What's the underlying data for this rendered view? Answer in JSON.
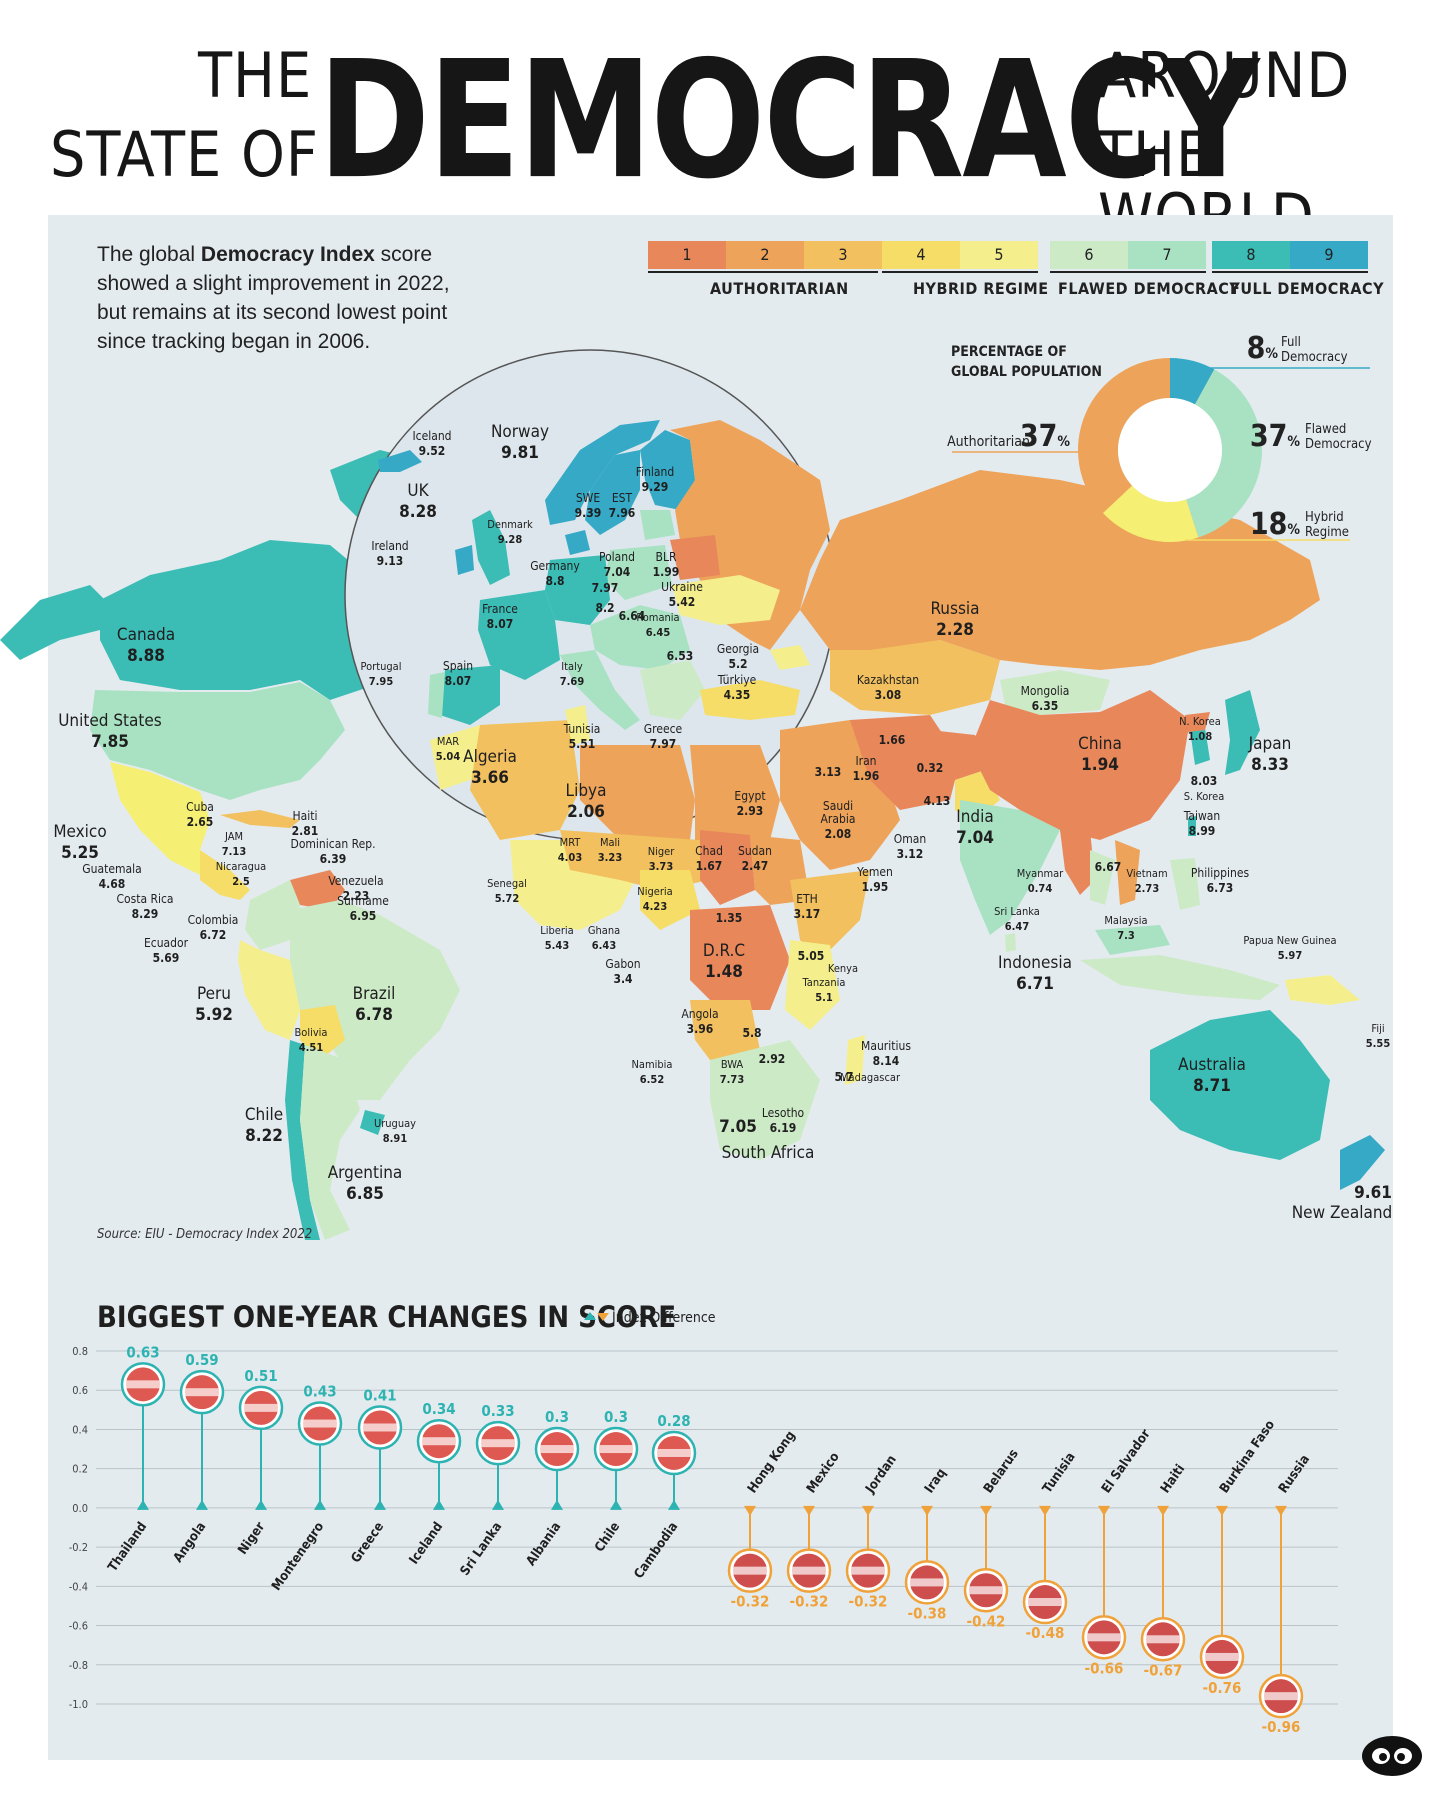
{
  "header": {
    "line1_left": "THE",
    "line2_left": "STATE OF",
    "big": "DEMOCRACY",
    "line1_right": "AROUND",
    "line2_right": "THE WORLD"
  },
  "intro": {
    "pre": "The global ",
    "bold": "Democracy Index",
    "post": " score showed a slight improvement in 2022, but remains at its second lowest point since tracking began in 2006."
  },
  "legend": {
    "cells": [
      {
        "label": "1",
        "color": "#e8875a"
      },
      {
        "label": "2",
        "color": "#eda359"
      },
      {
        "label": "3",
        "color": "#f2c05e"
      },
      {
        "label": "4",
        "color": "#f5dd67"
      },
      {
        "label": "5",
        "color": "#f4ef8c"
      },
      {
        "label": "6",
        "color": "#cdeac7"
      },
      {
        "label": "7",
        "color": "#a8e2c3"
      },
      {
        "label": "8",
        "color": "#3bbcb5"
      },
      {
        "label": "9",
        "color": "#36a9c6"
      }
    ],
    "groups": [
      "AUTHORITARIAN",
      "HYBRID REGIME",
      "FLAWED DEMOCRACY",
      "FULL DEMOCRACY"
    ]
  },
  "population": {
    "title_line1": "PERCENTAGE OF",
    "title_line2": "GLOBAL POPULATION",
    "segments": [
      {
        "name_line1": "Full",
        "name_line2": "Democracy",
        "value": 8,
        "color": "#36a9c6"
      },
      {
        "name_line1": "Flawed",
        "name_line2": "Democracy",
        "value": 37,
        "color": "#a8e2c3"
      },
      {
        "name_line1": "Hybrid",
        "name_line2": "Regime",
        "value": 18,
        "color": "#f5ef73"
      },
      {
        "name_line1": "Authoritarian",
        "name_line2": "",
        "value": 37,
        "color": "#eda359"
      }
    ],
    "pct_symbol": "%"
  },
  "map_labels": {
    "iceland": [
      "Iceland",
      "9.52"
    ],
    "norway": [
      "Norway",
      "9.81"
    ],
    "finland": [
      "Finland",
      "9.29"
    ],
    "uk": [
      "UK",
      "8.28"
    ],
    "swe": [
      "SWE",
      "9.39"
    ],
    "est": [
      "EST",
      "7.96"
    ],
    "denmark": [
      "Denmark",
      "9.28"
    ],
    "ireland": [
      "Ireland",
      "9.13"
    ],
    "germany": [
      "Germany",
      "8.8"
    ],
    "poland": [
      "Poland",
      "7.04"
    ],
    "blr": [
      "BLR",
      "1.99"
    ],
    "v797": "7.97",
    "ukraine": [
      "Ukraine",
      "5.42"
    ],
    "v82": "8.2",
    "v664": "6.64",
    "france": [
      "France",
      "8.07"
    ],
    "romania": [
      "Romania",
      "6.45"
    ],
    "v653": "6.53",
    "georgia": [
      "Georgia",
      "5.2"
    ],
    "portugal": [
      "Portugal",
      "7.95"
    ],
    "spain": [
      "Spain",
      "8.07"
    ],
    "italy": [
      "Italy",
      "7.69"
    ],
    "turkiye": [
      "Türkiye",
      "4.35"
    ],
    "tunisia": [
      "Tunisia",
      "5.51"
    ],
    "greece": [
      "Greece",
      "7.97"
    ],
    "mar": [
      "MAR",
      "5.04"
    ],
    "algeria": [
      "Algeria",
      "3.66"
    ],
    "libya": [
      "Libya",
      "2.06"
    ],
    "canada": [
      "Canada",
      "8.88"
    ],
    "russia": [
      "Russia",
      "2.28"
    ],
    "kazakhstan": [
      "Kazakhstan",
      "3.08"
    ],
    "mongolia": [
      "Mongolia",
      "6.35"
    ],
    "nkorea": [
      "N. Korea",
      "1.08"
    ],
    "japan": [
      "Japan",
      "8.33"
    ],
    "china": [
      "China",
      "1.94"
    ],
    "skorea": [
      "8.03",
      "S. Korea"
    ],
    "v166": "1.66",
    "iran": [
      "Iran",
      "1.96"
    ],
    "v032": "0.32",
    "v313": "3.13",
    "v413": "4.13",
    "us": [
      "United States",
      "7.85"
    ],
    "mexico": [
      "Mexico",
      "5.25"
    ],
    "cuba": [
      "Cuba",
      "2.65"
    ],
    "haiti": [
      "Haiti",
      "2.81"
    ],
    "jam": [
      "JAM",
      "7.13"
    ],
    "dominican": [
      "Dominican Rep.",
      "6.39"
    ],
    "guatemala": [
      "Guatemala",
      "4.68"
    ],
    "nicaragua": [
      "Nicaragua",
      "2.5"
    ],
    "venezuela": [
      "Venezuela",
      "2.23"
    ],
    "suriname": [
      "Suriname",
      "6.95"
    ],
    "costarica": [
      "Costa Rica",
      "8.29"
    ],
    "colombia": [
      "Colombia",
      "6.72"
    ],
    "ecuador": [
      "Ecuador",
      "5.69"
    ],
    "peru": [
      "Peru",
      "5.92"
    ],
    "brazil": [
      "Brazil",
      "6.78"
    ],
    "bolivia": [
      "Bolivia",
      "4.51"
    ],
    "chile": [
      "Chile",
      "8.22"
    ],
    "uruguay": [
      "Uruguay",
      "8.91"
    ],
    "argentina": [
      "Argentina",
      "6.85"
    ],
    "egypt": [
      "Egypt",
      "2.93"
    ],
    "saudi": [
      "Saudi",
      "Arabia",
      "2.08"
    ],
    "india": [
      "India",
      "7.04"
    ],
    "taiwan": [
      "Taiwan",
      "8.99"
    ],
    "mrt": [
      "MRT",
      "4.03"
    ],
    "mali": [
      "Mali",
      "3.23"
    ],
    "niger": [
      "Niger",
      "3.73"
    ],
    "chad": [
      "Chad",
      "1.67"
    ],
    "sudan": [
      "Sudan",
      "2.47"
    ],
    "oman": [
      "Oman",
      "3.12"
    ],
    "yemen": [
      "Yemen",
      "1.95"
    ],
    "myanmar": [
      "Myanmar",
      "0.74"
    ],
    "v667": "6.67",
    "vietnam": [
      "Vietnam",
      "2.73"
    ],
    "philippines": [
      "Philippines",
      "6.73"
    ],
    "senegal": [
      "Senegal",
      "5.72"
    ],
    "nigeria": [
      "Nigeria",
      "4.23"
    ],
    "eth": [
      "ETH",
      "3.17"
    ],
    "srilanka": [
      "Sri Lanka",
      "6.47"
    ],
    "malaysia": [
      "Malaysia",
      "7.3"
    ],
    "liberia": [
      "Liberia",
      "5.43"
    ],
    "ghana": [
      "Ghana",
      "6.43"
    ],
    "v135": "1.35",
    "drc": [
      "D.R.C",
      "1.48"
    ],
    "v505": "5.05",
    "kenya": "Kenya",
    "png": [
      "Papua New Guinea",
      "5.97"
    ],
    "gabon": [
      "Gabon",
      "3.4"
    ],
    "tanzania": [
      "Tanzania",
      "5.1"
    ],
    "indonesia": [
      "Indonesia",
      "6.71"
    ],
    "angola": [
      "Angola",
      "3.96"
    ],
    "v58": "5.8",
    "fiji": [
      "Fiji",
      "5.55"
    ],
    "mauritius": [
      "Mauritius",
      "8.14"
    ],
    "v292": "2.92",
    "namibia": [
      "Namibia",
      "6.52"
    ],
    "bwa": [
      "BWA",
      "7.73"
    ],
    "madagascar": [
      "5.7",
      "Madagascar"
    ],
    "australia": [
      "Australia",
      "8.71"
    ],
    "southafrica": [
      "7.05",
      "South Africa"
    ],
    "lesotho": [
      "Lesotho",
      "6.19"
    ],
    "newzealand": [
      "9.61",
      "New Zealand"
    ]
  },
  "source": "Source: EIU - Democracy Index 2022",
  "chart_data": {
    "type": "lollipop",
    "title": "BIGGEST ONE-YEAR CHANGES IN SCORE",
    "legend": "Index Difference",
    "ylim": [
      -1.0,
      0.8
    ],
    "yticks": [
      "0.8",
      "0.6",
      "0.4",
      "0.2",
      "0.0",
      "-0.2",
      "-0.4",
      "-0.6",
      "-0.8",
      "-1.0"
    ],
    "categories": [
      "Thailand",
      "Angola",
      "Niger",
      "Montenegro",
      "Greece",
      "Iceland",
      "Sri Lanka",
      "Albania",
      "Chile",
      "Cambodia",
      "Hong Kong",
      "Mexico",
      "Jordan",
      "Iraq",
      "Belarus",
      "Tunisia",
      "El Salvador",
      "Haiti",
      "Burkina Faso",
      "Russia"
    ],
    "values": [
      0.63,
      0.59,
      0.51,
      0.43,
      0.41,
      0.34,
      0.33,
      0.3,
      0.3,
      0.28,
      -0.32,
      -0.32,
      -0.32,
      -0.38,
      -0.42,
      -0.48,
      -0.66,
      -0.67,
      -0.76,
      -0.96
    ],
    "value_labels": [
      "0.63",
      "0.59",
      "0.51",
      "0.43",
      "0.41",
      "0.34",
      "0.33",
      "0.3",
      "0.3",
      "0.28",
      "-0.32",
      "-0.32",
      "-0.32",
      "-0.38",
      "-0.42",
      "-0.48",
      "-0.66",
      "-0.67",
      "-0.76",
      "-0.96"
    ],
    "positive_color": "#2db3b1",
    "negative_color": "#f0a23a"
  }
}
